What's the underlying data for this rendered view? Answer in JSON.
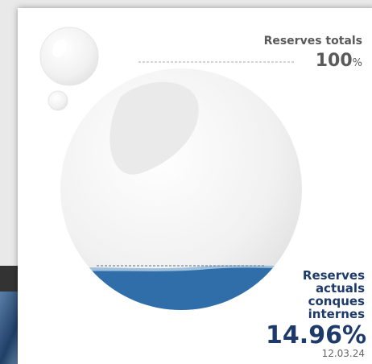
{
  "total": {
    "title": "Reserves totals",
    "value": "100",
    "unit": "%"
  },
  "current": {
    "title_lines": [
      "Reserves",
      "actuals",
      "conques",
      "internes"
    ],
    "value": "14.96%",
    "date": "12.03.24"
  }
}
